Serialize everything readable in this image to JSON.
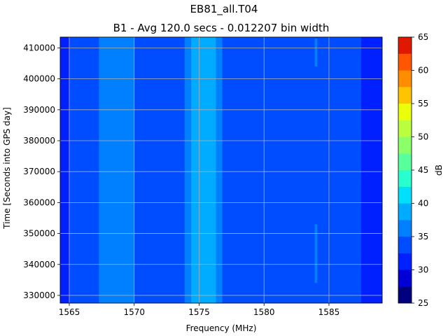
{
  "chart_data": {
    "type": "heatmap",
    "title": "EB81_all.T04",
    "subtitle": "B1 - Avg 120.0 secs - 0.012207 bin width",
    "xlabel": "Frequency (MHz)",
    "ylabel": "Time [Seconds into GPS day]",
    "xlim": [
      1564.3,
      1589.1
    ],
    "ylim": [
      327500,
      413500
    ],
    "x_ticks": [
      1565,
      1570,
      1575,
      1580,
      1585
    ],
    "y_ticks": [
      330000,
      340000,
      350000,
      360000,
      370000,
      380000,
      390000,
      400000,
      410000
    ],
    "grid": true,
    "colorbar": {
      "label": "dB",
      "ticks": [
        25,
        30,
        35,
        40,
        45,
        50,
        55,
        60,
        65
      ],
      "levels": [
        25,
        27.5,
        30,
        32.5,
        35,
        37.5,
        40,
        42.5,
        45,
        47.5,
        50,
        52.5,
        55,
        57.5,
        60,
        62.5,
        65
      ],
      "colors": [
        "#00007f",
        "#0000d6",
        "#0020ff",
        "#004cff",
        "#0080ff",
        "#00acff",
        "#00e0fb",
        "#29ffce",
        "#5aff9d",
        "#8cff6a",
        "#b9ff3d",
        "#ecff0a",
        "#ffc400",
        "#ff8d00",
        "#ff5600",
        "#e11800"
      ]
    },
    "bands": [
      {
        "x_start": 1564.3,
        "x_end": 1565.0,
        "level_db": 31
      },
      {
        "x_start": 1565.0,
        "x_end": 1567.3,
        "level_db": 33
      },
      {
        "x_start": 1567.3,
        "x_end": 1570.0,
        "level_db": 36
      },
      {
        "x_start": 1570.0,
        "x_end": 1573.9,
        "level_db": 33
      },
      {
        "x_start": 1573.9,
        "x_end": 1574.4,
        "level_db": 36
      },
      {
        "x_start": 1574.4,
        "x_end": 1576.3,
        "level_db": 38.5
      },
      {
        "x_start": 1576.3,
        "x_end": 1576.8,
        "level_db": 36
      },
      {
        "x_start": 1576.8,
        "x_end": 1587.5,
        "level_db": 33
      },
      {
        "x_start": 1587.5,
        "x_end": 1589.1,
        "level_db": 31
      }
    ],
    "spurs": [
      {
        "x_start": 1583.9,
        "x_end": 1584.1,
        "level_db": 36,
        "y_ranges": [
          [
            334000,
            353000
          ],
          [
            404000,
            413000
          ]
        ]
      }
    ]
  }
}
